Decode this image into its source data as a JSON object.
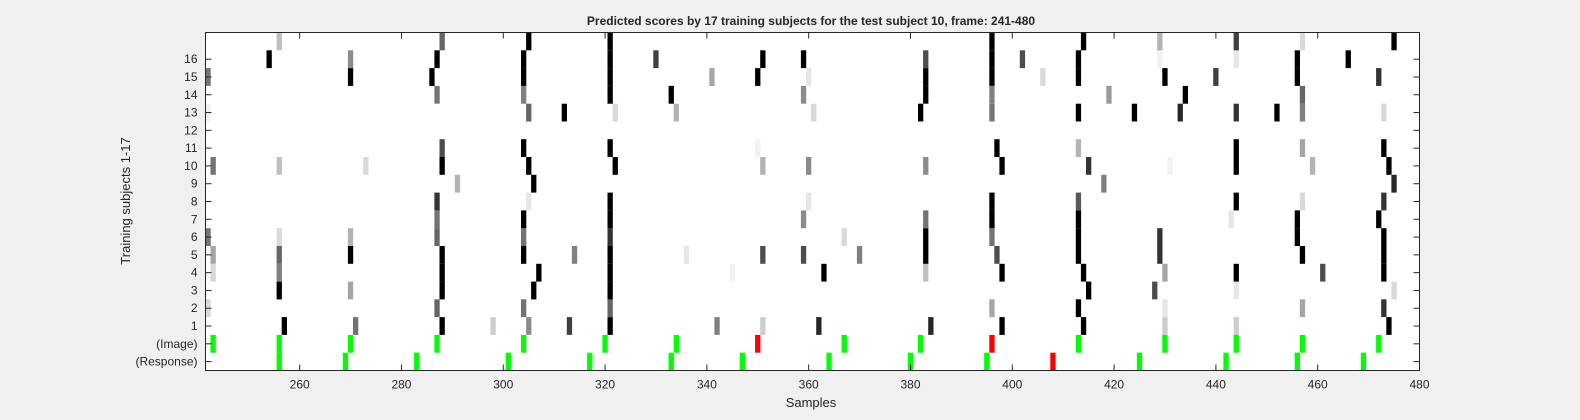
{
  "chart_data": {
    "type": "heatmap",
    "title": "Predicted scores by 17 training subjects for the test subject 10, frame: 241-480",
    "xlabel": "Samples",
    "ylabel": "Training subjects 1-17",
    "xlim": [
      241.5,
      480
    ],
    "ylim": [
      -1.5,
      17.5
    ],
    "x_ticks": [
      260,
      280,
      300,
      320,
      340,
      360,
      380,
      400,
      420,
      440,
      460,
      480
    ],
    "y_tick_labels": [
      {
        "y": -1,
        "label": "(Response)"
      },
      {
        "y": 0,
        "label": "(Image)"
      },
      {
        "y": 1,
        "label": "1"
      },
      {
        "y": 2,
        "label": "2"
      },
      {
        "y": 3,
        "label": "3"
      },
      {
        "y": 4,
        "label": "4"
      },
      {
        "y": 5,
        "label": "5"
      },
      {
        "y": 6,
        "label": "6"
      },
      {
        "y": 7,
        "label": "7"
      },
      {
        "y": 8,
        "label": "8"
      },
      {
        "y": 9,
        "label": "9"
      },
      {
        "y": 10,
        "label": "10"
      },
      {
        "y": 11,
        "label": "11"
      },
      {
        "y": 12,
        "label": "12"
      },
      {
        "y": 13,
        "label": "13"
      },
      {
        "y": 14,
        "label": "14"
      },
      {
        "y": 15,
        "label": "15"
      },
      {
        "y": 16,
        "label": "16"
      }
    ],
    "colors": {
      "background": "#ffffff",
      "correct": "#00ff00",
      "wrong": "#ff0000",
      "score_high": "#000000"
    },
    "image_markers": [
      {
        "x": 243,
        "color": "green"
      },
      {
        "x": 256,
        "color": "green"
      },
      {
        "x": 270,
        "color": "green"
      },
      {
        "x": 287,
        "color": "green"
      },
      {
        "x": 304,
        "color": "green"
      },
      {
        "x": 320,
        "color": "green"
      },
      {
        "x": 334,
        "color": "green"
      },
      {
        "x": 350,
        "color": "red"
      },
      {
        "x": 367,
        "color": "green"
      },
      {
        "x": 382,
        "color": "green"
      },
      {
        "x": 396,
        "color": "red"
      },
      {
        "x": 413,
        "color": "green"
      },
      {
        "x": 430,
        "color": "green"
      },
      {
        "x": 444,
        "color": "green"
      },
      {
        "x": 457,
        "color": "green"
      },
      {
        "x": 472,
        "color": "green"
      }
    ],
    "response_markers": [
      {
        "x": 256,
        "color": "green"
      },
      {
        "x": 269,
        "color": "green"
      },
      {
        "x": 283,
        "color": "green"
      },
      {
        "x": 301,
        "color": "green"
      },
      {
        "x": 317,
        "color": "green"
      },
      {
        "x": 333,
        "color": "green"
      },
      {
        "x": 347,
        "color": "green"
      },
      {
        "x": 364,
        "color": "green"
      },
      {
        "x": 380,
        "color": "green"
      },
      {
        "x": 395,
        "color": "green"
      },
      {
        "x": 408,
        "color": "red"
      },
      {
        "x": 425,
        "color": "green"
      },
      {
        "x": 442,
        "color": "green"
      },
      {
        "x": 456,
        "color": "green"
      },
      {
        "x": 469,
        "color": "green"
      }
    ],
    "scores": [
      {
        "y": 1,
        "cells": [
          [
            257,
            1.0
          ],
          [
            271,
            0.55
          ],
          [
            288,
            1.0
          ],
          [
            298,
            0.2
          ],
          [
            305,
            0.45
          ],
          [
            313,
            0.75
          ],
          [
            321,
            1.0
          ],
          [
            342,
            0.5
          ],
          [
            351,
            0.2
          ],
          [
            362,
            0.85
          ],
          [
            384,
            0.85
          ],
          [
            398,
            1.0
          ],
          [
            414,
            1.0
          ],
          [
            430,
            0.2
          ],
          [
            444,
            0.2
          ],
          [
            474,
            1.0
          ]
        ]
      },
      {
        "y": 2,
        "cells": [
          [
            242,
            0.15
          ],
          [
            287,
            0.6
          ],
          [
            304,
            0.55
          ],
          [
            321,
            0.6
          ],
          [
            396,
            0.35
          ],
          [
            413,
            1.0
          ],
          [
            430,
            0.1
          ],
          [
            457,
            0.35
          ],
          [
            473,
            0.8
          ]
        ]
      },
      {
        "y": 3,
        "cells": [
          [
            256,
            1.0
          ],
          [
            270,
            0.35
          ],
          [
            288,
            1.0
          ],
          [
            306,
            1.0
          ],
          [
            321,
            1.0
          ],
          [
            415,
            1.0
          ],
          [
            428,
            0.7
          ],
          [
            444,
            0.1
          ],
          [
            475,
            0.15
          ]
        ]
      },
      {
        "y": 4,
        "cells": [
          [
            243,
            0.15
          ],
          [
            256,
            0.5
          ],
          [
            288,
            1.0
          ],
          [
            307,
            1.0
          ],
          [
            321,
            1.0
          ],
          [
            345,
            0.05
          ],
          [
            363,
            1.0
          ],
          [
            383,
            0.25
          ],
          [
            398,
            1.0
          ],
          [
            414,
            1.0
          ],
          [
            430,
            0.35
          ],
          [
            444,
            1.0
          ],
          [
            461,
            0.7
          ],
          [
            473,
            1.0
          ]
        ]
      },
      {
        "y": 5,
        "cells": [
          [
            243,
            0.35
          ],
          [
            256,
            0.6
          ],
          [
            270,
            1.0
          ],
          [
            288,
            1.0
          ],
          [
            304,
            1.0
          ],
          [
            314,
            0.5
          ],
          [
            321,
            1.0
          ],
          [
            336,
            0.1
          ],
          [
            351,
            0.7
          ],
          [
            359,
            0.7
          ],
          [
            370,
            0.5
          ],
          [
            383,
            1.0
          ],
          [
            397,
            0.7
          ],
          [
            413,
            1.0
          ],
          [
            429,
            0.8
          ],
          [
            457,
            1.0
          ],
          [
            473,
            1.0
          ]
        ]
      },
      {
        "y": 6,
        "cells": [
          [
            242,
            0.55
          ],
          [
            256,
            0.15
          ],
          [
            270,
            0.3
          ],
          [
            287,
            0.6
          ],
          [
            304,
            0.55
          ],
          [
            321,
            0.8
          ],
          [
            367,
            0.15
          ],
          [
            383,
            1.0
          ],
          [
            396,
            0.55
          ],
          [
            413,
            1.0
          ],
          [
            429,
            0.8
          ],
          [
            456,
            1.0
          ],
          [
            473,
            1.0
          ]
        ]
      },
      {
        "y": 7,
        "cells": [
          [
            287,
            0.55
          ],
          [
            304,
            1.0
          ],
          [
            321,
            1.0
          ],
          [
            359,
            0.45
          ],
          [
            383,
            0.55
          ],
          [
            396,
            1.0
          ],
          [
            413,
            1.0
          ],
          [
            443,
            0.1
          ],
          [
            456,
            1.0
          ],
          [
            472,
            1.0
          ]
        ]
      },
      {
        "y": 8,
        "cells": [
          [
            287,
            0.8
          ],
          [
            305,
            0.1
          ],
          [
            321,
            1.0
          ],
          [
            360,
            0.1
          ],
          [
            396,
            1.0
          ],
          [
            413,
            0.65
          ],
          [
            444,
            1.0
          ],
          [
            457,
            0.15
          ],
          [
            473,
            0.8
          ]
        ]
      },
      {
        "y": 9,
        "cells": [
          [
            291,
            0.3
          ],
          [
            306,
            1.0
          ],
          [
            418,
            0.5
          ],
          [
            475,
            0.85
          ]
        ]
      },
      {
        "y": 10,
        "cells": [
          [
            243,
            0.55
          ],
          [
            256,
            0.25
          ],
          [
            273,
            0.15
          ],
          [
            288,
            1.0
          ],
          [
            305,
            1.0
          ],
          [
            322,
            1.0
          ],
          [
            351,
            0.3
          ],
          [
            360,
            0.45
          ],
          [
            383,
            0.45
          ],
          [
            398,
            1.0
          ],
          [
            415,
            0.8
          ],
          [
            431,
            0.05
          ],
          [
            444,
            1.0
          ],
          [
            459,
            0.3
          ],
          [
            474,
            1.0
          ]
        ]
      },
      {
        "y": 11,
        "cells": [
          [
            288,
            0.7
          ],
          [
            304,
            1.0
          ],
          [
            321,
            1.0
          ],
          [
            350,
            0.05
          ],
          [
            397,
            1.0
          ],
          [
            413,
            0.3
          ],
          [
            444,
            1.0
          ],
          [
            457,
            0.35
          ],
          [
            473,
            1.0
          ]
        ]
      },
      {
        "y": 13,
        "cells": [
          [
            242,
            0.05
          ],
          [
            305,
            0.6
          ],
          [
            312,
            1.0
          ],
          [
            322,
            0.15
          ],
          [
            334,
            0.3
          ],
          [
            361,
            0.15
          ],
          [
            382,
            1.0
          ],
          [
            396,
            0.55
          ],
          [
            413,
            1.0
          ],
          [
            424,
            1.0
          ],
          [
            433,
            0.85
          ],
          [
            444,
            0.8
          ],
          [
            452,
            1.0
          ],
          [
            457,
            0.5
          ],
          [
            473,
            0.15
          ]
        ]
      },
      {
        "y": 14,
        "cells": [
          [
            287,
            0.55
          ],
          [
            304,
            0.5
          ],
          [
            321,
            1.0
          ],
          [
            333,
            1.0
          ],
          [
            359,
            0.45
          ],
          [
            383,
            1.0
          ],
          [
            396,
            0.5
          ],
          [
            419,
            0.4
          ],
          [
            434,
            1.0
          ],
          [
            457,
            0.6
          ]
        ]
      },
      {
        "y": 15,
        "cells": [
          [
            242,
            0.55
          ],
          [
            270,
            1.0
          ],
          [
            286,
            1.0
          ],
          [
            304,
            1.0
          ],
          [
            321,
            1.0
          ],
          [
            341,
            0.35
          ],
          [
            350,
            1.0
          ],
          [
            360,
            0.1
          ],
          [
            383,
            1.0
          ],
          [
            396,
            1.0
          ],
          [
            406,
            0.15
          ],
          [
            413,
            1.0
          ],
          [
            430,
            1.0
          ],
          [
            440,
            0.75
          ],
          [
            456,
            1.0
          ],
          [
            472,
            0.8
          ]
        ]
      },
      {
        "y": 16,
        "cells": [
          [
            254,
            1.0
          ],
          [
            270,
            0.45
          ],
          [
            287,
            1.0
          ],
          [
            304,
            1.0
          ],
          [
            321,
            1.0
          ],
          [
            330,
            0.75
          ],
          [
            351,
            1.0
          ],
          [
            359,
            1.0
          ],
          [
            383,
            0.7
          ],
          [
            396,
            1.0
          ],
          [
            402,
            0.7
          ],
          [
            413,
            1.0
          ],
          [
            429,
            0.05
          ],
          [
            444,
            0.1
          ],
          [
            456,
            1.0
          ],
          [
            466,
            1.0
          ]
        ]
      },
      {
        "y": 17,
        "cells": [
          [
            256,
            0.25
          ],
          [
            288,
            0.6
          ],
          [
            305,
            1.0
          ],
          [
            321,
            1.0
          ],
          [
            396,
            1.0
          ],
          [
            414,
            1.0
          ],
          [
            429,
            0.3
          ],
          [
            444,
            0.75
          ],
          [
            457,
            0.15
          ],
          [
            475,
            1.0
          ]
        ]
      }
    ]
  }
}
